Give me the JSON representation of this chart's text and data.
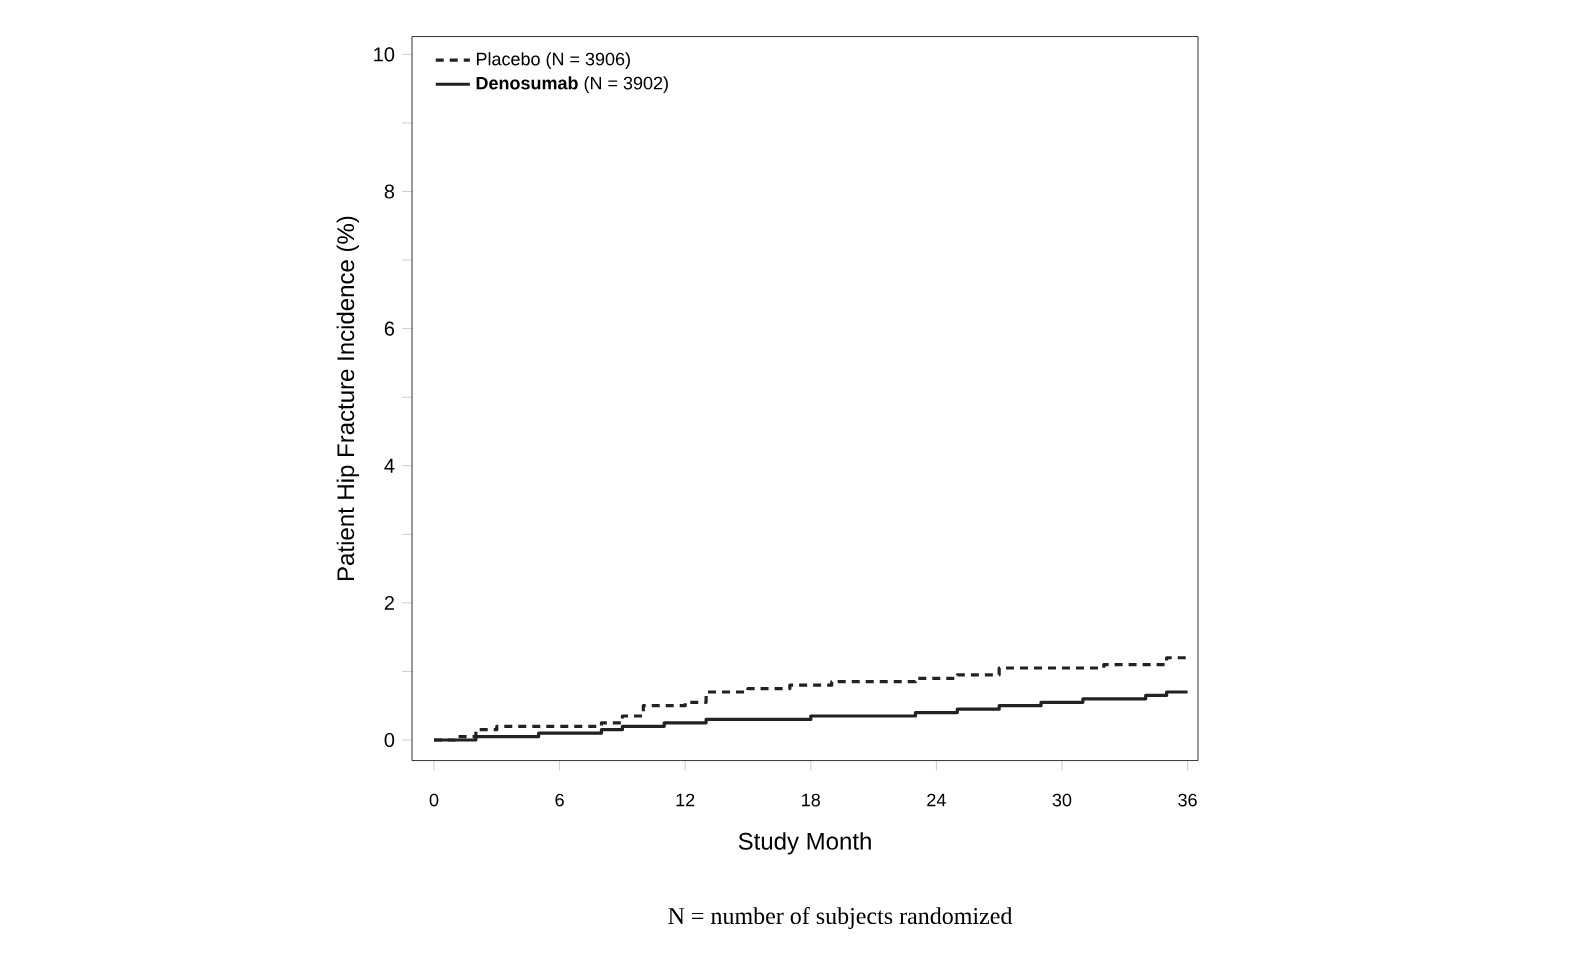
{
  "chart_data": {
    "type": "step",
    "xlabel": "Study Month",
    "ylabel": "Patient Hip Fracture Incidence (%)",
    "xlim": [
      -1.05,
      36.5
    ],
    "xticks": [
      0,
      6,
      12,
      18,
      24,
      30,
      36
    ],
    "ylim": [
      -0.3,
      10.26
    ],
    "yticks": [
      0,
      {
        "value": 1,
        "label": null
      },
      2,
      {
        "value": 3,
        "label": null
      },
      4,
      {
        "value": 5,
        "label": null
      },
      6,
      {
        "value": 7,
        "label": null
      },
      8,
      {
        "value": 9,
        "label": null
      },
      10
    ],
    "legend": "top left",
    "grid": false,
    "annotations": [
      "N = number of subjects randomized"
    ],
    "series": [
      {
        "name": "Placebo (N = 3906)",
        "color": "#222222",
        "line_style": "dashed",
        "x": [
          0,
          1,
          2,
          3,
          8,
          9,
          10,
          12,
          13,
          15,
          17,
          19,
          23,
          25,
          27,
          30,
          32,
          35,
          36
        ],
        "values": [
          0,
          0.05,
          0.15,
          0.2,
          0.25,
          0.35,
          0.5,
          0.55,
          0.7,
          0.75,
          0.8,
          0.85,
          0.9,
          0.95,
          1.05,
          1.05,
          1.1,
          1.2,
          1.2
        ]
      },
      {
        "name": "**Denosumab** (N = 3902)",
        "color": "#222222",
        "line_style": "solid",
        "x": [
          0,
          2,
          5,
          8,
          9,
          11,
          13,
          18,
          23,
          25,
          27,
          29,
          31,
          34,
          35,
          36
        ],
        "values": [
          0,
          0.05,
          0.1,
          0.15,
          0.2,
          0.25,
          0.3,
          0.35,
          0.4,
          0.45,
          0.5,
          0.55,
          0.6,
          0.65,
          0.7,
          0.7
        ]
      }
    ]
  }
}
